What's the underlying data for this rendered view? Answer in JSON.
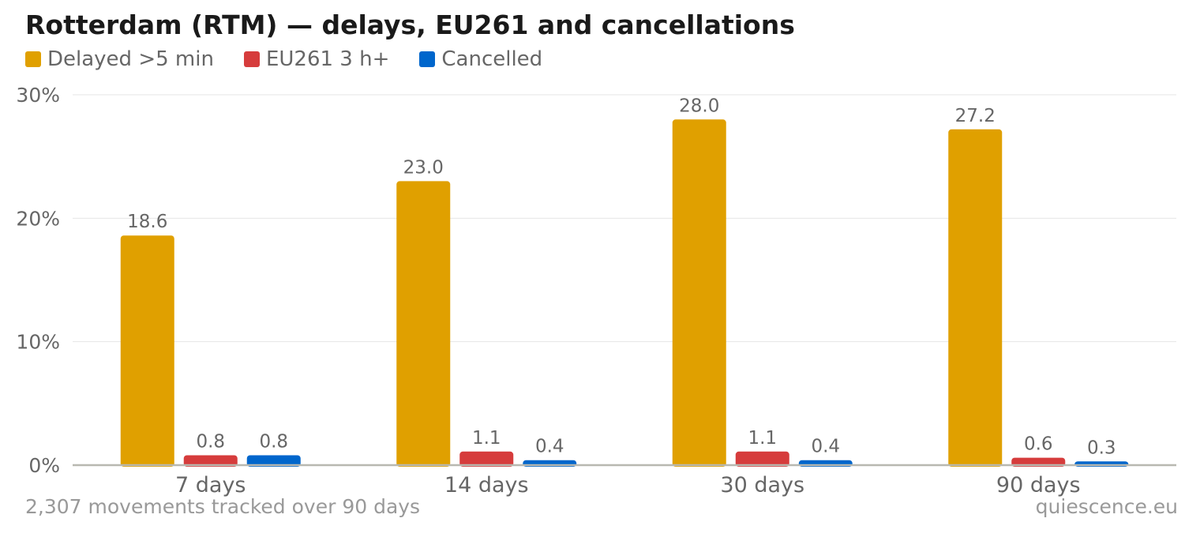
{
  "title": "Rotterdam (RTM) — delays, EU261 and cancellations",
  "footer": {
    "left": "2,307 movements tracked over 90 days",
    "right": "quiescence.eu"
  },
  "legend": [
    {
      "label": "Delayed >5 min",
      "color": "#e0a000"
    },
    {
      "label": "EU261 3 h+",
      "color": "#d63c3c"
    },
    {
      "label": "Cancelled",
      "color": "#0066cc"
    }
  ],
  "chart_data": {
    "type": "bar",
    "categories": [
      "7 days",
      "14 days",
      "30 days",
      "90 days"
    ],
    "series": [
      {
        "name": "Delayed >5 min",
        "color": "#e0a000",
        "values": [
          18.6,
          23.0,
          28.0,
          27.2
        ],
        "labels": [
          "18.6",
          "23.0",
          "28.0",
          "27.2"
        ]
      },
      {
        "name": "EU261 3 h+",
        "color": "#d63c3c",
        "values": [
          0.8,
          1.1,
          1.1,
          0.6
        ],
        "labels": [
          "0.8",
          "1.1",
          "1.1",
          "0.6"
        ]
      },
      {
        "name": "Cancelled",
        "color": "#0066cc",
        "values": [
          0.8,
          0.4,
          0.4,
          0.3
        ],
        "labels": [
          "0.8",
          "0.4",
          "0.4",
          "0.3"
        ]
      }
    ],
    "yticks": [
      0,
      10,
      20,
      30
    ],
    "ytick_labels": [
      "0%",
      "10%",
      "20%",
      "30%"
    ],
    "ylim": [
      0,
      30
    ],
    "grid": true,
    "legend_position": "top-left"
  }
}
